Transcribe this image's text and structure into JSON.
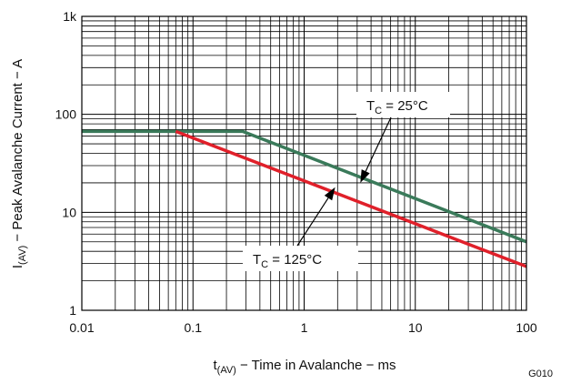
{
  "chart_data": {
    "type": "line",
    "xscale": "log",
    "yscale": "log",
    "xlim": [
      0.01,
      100
    ],
    "ylim": [
      1,
      1000
    ],
    "grid": true,
    "xlabel": {
      "prefix": "t",
      "sub": "(AV)",
      "suffix": " − Time in Avalanche − ms"
    },
    "ylabel": {
      "prefix": "I",
      "sub": "(AV)",
      "suffix": " − Peak Avalanche Current − A"
    },
    "xticks": [
      {
        "value": 0.01,
        "label": "0.01"
      },
      {
        "value": 0.1,
        "label": "0.1"
      },
      {
        "value": 1,
        "label": "1"
      },
      {
        "value": 10,
        "label": "10"
      },
      {
        "value": 100,
        "label": "100"
      }
    ],
    "yticks": [
      {
        "value": 1,
        "label": "1"
      },
      {
        "value": 10,
        "label": "10"
      },
      {
        "value": 100,
        "label": "100"
      },
      {
        "value": 1000,
        "label": "1k"
      }
    ],
    "series": [
      {
        "color": "#3a7a5a",
        "points": [
          [
            0.01,
            67
          ],
          [
            0.28,
            67
          ],
          [
            100,
            5
          ]
        ]
      },
      {
        "color": "#e0202a",
        "points": [
          [
            0.07,
            67
          ],
          [
            100,
            2.8
          ]
        ]
      }
    ],
    "annotations": [
      {
        "prefix": "T",
        "sub": "C",
        "suffix": " = 25°C",
        "x": 3.2,
        "y": 20,
        "series": 0
      },
      {
        "prefix": "T",
        "sub": "C",
        "suffix": " = 125°C",
        "x": 1.9,
        "y": 18,
        "series": 1
      }
    ],
    "figure_code": "G010"
  }
}
